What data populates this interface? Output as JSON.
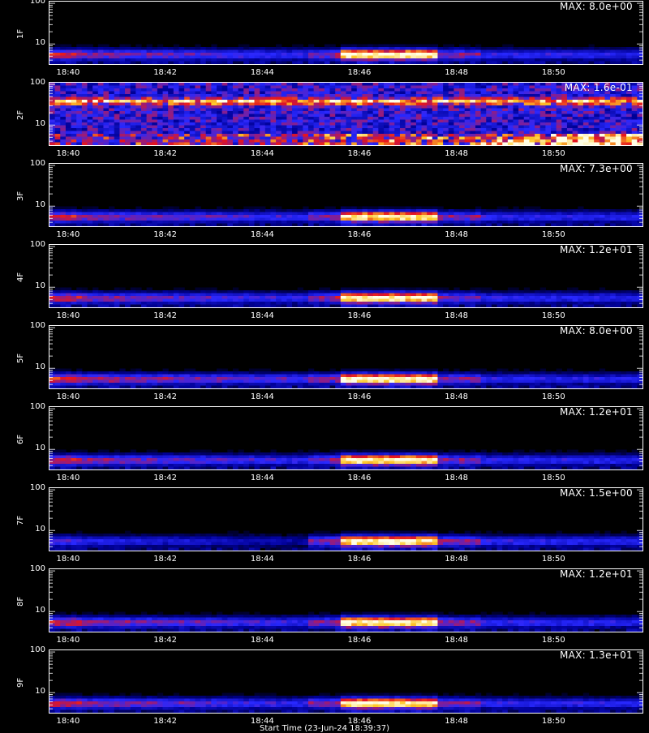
{
  "chart_data": {
    "type": "heatmap",
    "x_tick_labels": [
      "18:40",
      "18:42",
      "18:44",
      "18:46",
      "18:48",
      "18:50"
    ],
    "y_tick_labels": [
      "100",
      "10"
    ],
    "x_axis_title": "Start Time (23-Jun-24 18:39:37)",
    "colormap": "black-blue-red-yellow-white",
    "panels": [
      {
        "name": "1F",
        "max_label": "MAX: 8.0e+00",
        "max": 8.0,
        "burst": [
          0.85,
          0.98
        ],
        "pre": 0.55
      },
      {
        "name": "2F",
        "max_label": "MAX: 1.6e-01",
        "max": 0.16,
        "burst": [
          0.0,
          0.0
        ],
        "pre": 0.0,
        "noisy": true
      },
      {
        "name": "3F",
        "max_label": "MAX: 7.3e+00",
        "max": 7.3,
        "burst": [
          0.8,
          0.95
        ],
        "pre": 0.55
      },
      {
        "name": "4F",
        "max_label": "MAX: 1.2e+01",
        "max": 12.0,
        "burst": [
          0.85,
          0.95
        ],
        "pre": 0.55
      },
      {
        "name": "5F",
        "max_label": "MAX: 8.0e+00",
        "max": 8.0,
        "burst": [
          0.88,
          1.0
        ],
        "pre": 0.6
      },
      {
        "name": "6F",
        "max_label": "MAX: 1.2e+01",
        "max": 12.0,
        "burst": [
          0.85,
          0.98
        ],
        "pre": 0.55
      },
      {
        "name": "7F",
        "max_label": "MAX: 1.5e+00",
        "max": 1.5,
        "burst": [
          0.85,
          0.98
        ],
        "pre": 0.35
      },
      {
        "name": "8F",
        "max_label": "MAX: 1.2e+01",
        "max": 12.0,
        "burst": [
          0.85,
          0.98
        ],
        "pre": 0.55
      },
      {
        "name": "9F",
        "max_label": "MAX: 1.3e+01",
        "max": 13.0,
        "burst": [
          0.85,
          0.95
        ],
        "pre": 0.55
      }
    ]
  }
}
